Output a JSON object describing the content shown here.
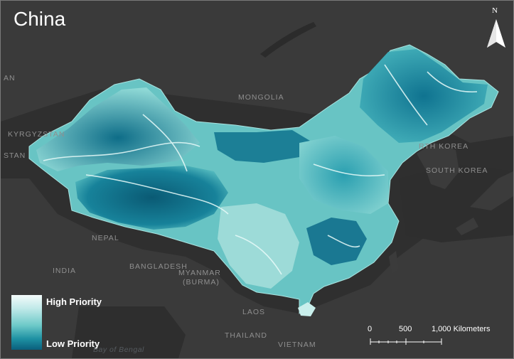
{
  "map": {
    "title": "China",
    "region_labels": {
      "mongolia": "MONGOLIA",
      "kyrgyzstan": "KYRGYZSTAN",
      "north_korea": "RTH KOREA",
      "south_korea": "SOUTH KOREA",
      "nepal": "NEPAL",
      "india": "INDIA",
      "bangladesh": "BANGLADESH",
      "myanmar_line1": "MYANMAR",
      "myanmar_line2": "(BURMA)",
      "laos": "LAOS",
      "thailand": "THAILAND",
      "vietnam": "VIETNAM",
      "bay_of_bengal": "Bay of Bengal",
      "edge_fragment_1": "AN",
      "edge_fragment_2": "STAN"
    },
    "legend": {
      "high_label": "High Priority",
      "low_label": "Low Priority",
      "high_color": "#f4fbfb",
      "low_color": "#0a5f7c"
    },
    "scale_bar": {
      "tick_0": "0",
      "tick_500": "500",
      "tick_1000": "1,000 Kilometers"
    },
    "north_arrow": {
      "letter": "N",
      "icon": "north-arrow-icon"
    },
    "colors": {
      "background": "#2f2f2f",
      "land_dark": "#3b3b3b",
      "water": "#2f2f2f",
      "priority_high": "#dff4f2",
      "priority_mid": "#3da9b5",
      "priority_low": "#0a5f7c"
    }
  }
}
